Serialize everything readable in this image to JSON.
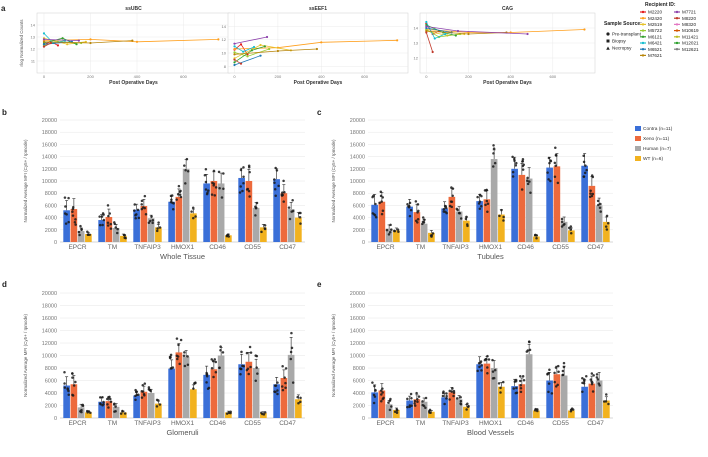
{
  "colors": {
    "Contra": "#3a6fd8",
    "Xeno": "#ed6a3c",
    "Human": "#a9a9a9",
    "WT": "#f2b21f",
    "pre_line": "#f39c2a",
    "grid": "#e6e6e6"
  },
  "panel_labels": [
    "a",
    "b",
    "c",
    "d",
    "e"
  ],
  "recipient_legend": {
    "title": "Recipient ID:",
    "items": [
      {
        "id": "M2220",
        "color": "#e41a1c"
      },
      {
        "id": "M2420",
        "color": "#ff9f1c"
      },
      {
        "id": "M2519",
        "color": "#e6c229"
      },
      {
        "id": "M5722",
        "color": "#9acd32"
      },
      {
        "id": "M6121",
        "color": "#33a02c"
      },
      {
        "id": "M6421",
        "color": "#17becf"
      },
      {
        "id": "M6521",
        "color": "#1f78b4"
      },
      {
        "id": "M7621",
        "color": "#b8860b"
      },
      {
        "id": "M7721",
        "color": "#8e44ad"
      },
      {
        "id": "M8220",
        "color": "#c0392b"
      },
      {
        "id": "M8320",
        "color": "#e377c2"
      },
      {
        "id": "M10619",
        "color": "#d35400"
      },
      {
        "id": "M11421",
        "color": "#bcbd22"
      },
      {
        "id": "M12021",
        "color": "#2ca02c"
      },
      {
        "id": "M12621",
        "color": "#7f7f7f"
      }
    ]
  },
  "sample_legend": {
    "title": "Sample Source:",
    "items": [
      "Pre-transplant",
      "Biopsy",
      "Necropsy"
    ]
  },
  "group_legend": [
    {
      "label": "Contra (n=11)",
      "color": "#3a6fd8"
    },
    {
      "label": "Xeno (n=11)",
      "color": "#ed6a3c"
    },
    {
      "label": "Human (n=7)",
      "color": "#a9a9a9"
    },
    {
      "label": "WT (n=6)",
      "color": "#f2b21f"
    }
  ],
  "chart_data": [
    {
      "type": "line",
      "panel": "a",
      "title": "ssUBC",
      "xlabel": "Post Operative Days",
      "ylabel": "rlog Normalized Counts",
      "xlim": [
        -30,
        800
      ],
      "ylim": [
        10,
        15
      ],
      "xticks": [
        0,
        200,
        400,
        600
      ],
      "yticks": [
        11,
        12,
        13,
        14
      ],
      "series": [
        {
          "name": "M2220",
          "x": [
            0,
            30,
            60
          ],
          "y": [
            12.4,
            12.6,
            12.3
          ]
        },
        {
          "name": "M2420",
          "x": [
            0,
            200,
            400,
            750
          ],
          "y": [
            12.7,
            12.8,
            12.6,
            12.8
          ]
        },
        {
          "name": "M2519",
          "x": [
            0,
            100,
            180
          ],
          "y": [
            12.9,
            12.4,
            12.6
          ]
        },
        {
          "name": "M5722",
          "x": [
            0,
            60,
            160
          ],
          "y": [
            12.3,
            12.6,
            12.5
          ]
        },
        {
          "name": "M6121",
          "x": [
            0,
            80,
            140
          ],
          "y": [
            12.5,
            12.9,
            12.4
          ]
        },
        {
          "name": "M6421",
          "x": [
            0,
            40,
            90
          ],
          "y": [
            13.3,
            12.5,
            12.7
          ]
        },
        {
          "name": "M6521",
          "x": [
            0,
            120
          ],
          "y": [
            12.4,
            12.6
          ]
        },
        {
          "name": "M7621",
          "x": [
            0,
            200,
            380
          ],
          "y": [
            12.6,
            12.5,
            12.7
          ]
        },
        {
          "name": "M7721",
          "x": [
            0,
            150
          ],
          "y": [
            12.8,
            12.7
          ]
        },
        {
          "name": "M8220",
          "x": [
            0,
            30
          ],
          "y": [
            12.2,
            12.5
          ]
        }
      ]
    },
    {
      "type": "line",
      "panel": "a",
      "title": "ssEEF1",
      "xlabel": "Post Operative Days",
      "ylabel": "",
      "xlim": [
        -30,
        800
      ],
      "ylim": [
        7,
        16
      ],
      "xticks": [
        0,
        200,
        400,
        600
      ],
      "yticks": [
        8,
        10,
        12,
        14
      ],
      "series": [
        {
          "name": "M2220",
          "x": [
            0,
            30,
            60
          ],
          "y": [
            10.5,
            11.3,
            9.8
          ]
        },
        {
          "name": "M2420",
          "x": [
            0,
            200,
            400,
            750
          ],
          "y": [
            10.6,
            10.8,
            11.6,
            11.9
          ]
        },
        {
          "name": "M2519",
          "x": [
            0,
            120,
            260
          ],
          "y": [
            9.2,
            11.2,
            10.4
          ]
        },
        {
          "name": "M5722",
          "x": [
            0,
            60,
            160
          ],
          "y": [
            10.1,
            9.5,
            10.6
          ]
        },
        {
          "name": "M6121",
          "x": [
            0,
            80,
            140
          ],
          "y": [
            8.6,
            10.4,
            11.0
          ]
        },
        {
          "name": "M6421",
          "x": [
            0,
            40,
            90
          ],
          "y": [
            11.0,
            10.2,
            10.9
          ]
        },
        {
          "name": "M6521",
          "x": [
            0,
            120
          ],
          "y": [
            8.2,
            9.6
          ]
        },
        {
          "name": "M7621",
          "x": [
            0,
            200,
            380
          ],
          "y": [
            9.8,
            10.3,
            10.6
          ]
        },
        {
          "name": "M7721",
          "x": [
            0,
            150
          ],
          "y": [
            11.4,
            12.4
          ]
        },
        {
          "name": "M8220",
          "x": [
            0,
            30
          ],
          "y": [
            9.0,
            8.4
          ]
        }
      ]
    },
    {
      "type": "line",
      "panel": "a",
      "title": "CAG",
      "xlabel": "Post Operative Days",
      "ylabel": "",
      "xlim": [
        -30,
        800
      ],
      "ylim": [
        11,
        15
      ],
      "xticks": [
        0,
        200,
        400,
        600
      ],
      "yticks": [
        12,
        13,
        14
      ],
      "series": [
        {
          "name": "M2220",
          "x": [
            0,
            30,
            60
          ],
          "y": [
            14.3,
            13.6,
            13.8
          ]
        },
        {
          "name": "M2420",
          "x": [
            0,
            200,
            400,
            750
          ],
          "y": [
            13.9,
            13.7,
            13.7,
            13.9
          ]
        },
        {
          "name": "M2519",
          "x": [
            0,
            100,
            180
          ],
          "y": [
            13.8,
            13.5,
            13.6
          ]
        },
        {
          "name": "M5722",
          "x": [
            0,
            60,
            160
          ],
          "y": [
            13.9,
            13.4,
            13.6
          ]
        },
        {
          "name": "M6121",
          "x": [
            0,
            80,
            140
          ],
          "y": [
            14.2,
            13.7,
            13.5
          ]
        },
        {
          "name": "M6421",
          "x": [
            0,
            40,
            90
          ],
          "y": [
            14.4,
            13.3,
            13.6
          ]
        },
        {
          "name": "M6521",
          "x": [
            0,
            120
          ],
          "y": [
            14.0,
            13.7
          ]
        },
        {
          "name": "M7621",
          "x": [
            0,
            200,
            380
          ],
          "y": [
            13.8,
            13.6,
            13.7
          ]
        },
        {
          "name": "M7721",
          "x": [
            0,
            150,
            480
          ],
          "y": [
            14.1,
            13.8,
            13.6
          ]
        },
        {
          "name": "M8220",
          "x": [
            0,
            30
          ],
          "y": [
            13.7,
            12.4
          ]
        }
      ]
    },
    {
      "type": "bar",
      "panel": "b",
      "xlabel": "Whole Tissue",
      "ylabel": "Normalized Average MFI (Cy5+ / Ipmode)",
      "ylim": [
        0,
        20000
      ],
      "yticks": [
        0,
        2000,
        4000,
        6000,
        8000,
        10000,
        12000,
        14000,
        16000,
        18000,
        20000
      ],
      "categories": [
        "EPCR",
        "TM",
        "TNFAIP3",
        "HMOX1",
        "CD46",
        "CD55",
        "CD47"
      ],
      "series": [
        {
          "name": "Contra",
          "values": [
            5200,
            3600,
            5300,
            6600,
            9600,
            10500,
            10300
          ],
          "err": [
            1600,
            900,
            900,
            900,
            1500,
            1600,
            1700
          ]
        },
        {
          "name": "Xeno",
          "values": [
            5400,
            4100,
            5900,
            7400,
            10000,
            10000,
            8000
          ],
          "err": [
            1700,
            1300,
            1100,
            1300,
            1500,
            1900,
            1400
          ]
        },
        {
          "name": "Human",
          "values": [
            1800,
            2300,
            3900,
            12000,
            9600,
            5600,
            5400
          ],
          "err": [
            500,
            600,
            500,
            1500,
            1700,
            900,
            1100
          ]
        },
        {
          "name": "WT",
          "values": [
            1300,
            1000,
            2400,
            4700,
            1100,
            2400,
            4000
          ],
          "err": [
            300,
            300,
            500,
            700,
            200,
            500,
            800
          ]
        }
      ]
    },
    {
      "type": "bar",
      "panel": "c",
      "xlabel": "Tubules",
      "ylabel": "Normalized Average MFI (Cy5+ / Ipmode)",
      "ylim": [
        0,
        20000
      ],
      "yticks": [
        0,
        2000,
        4000,
        6000,
        8000,
        10000,
        12000,
        14000,
        16000,
        18000,
        20000
      ],
      "categories": [
        "EPCR",
        "TM",
        "TNFAIP3",
        "HMOX1",
        "CD46",
        "CD55",
        "CD47"
      ],
      "series": [
        {
          "name": "Contra",
          "values": [
            6100,
            5800,
            5500,
            6700,
            12000,
            12200,
            12500
          ],
          "err": [
            1700,
            1200,
            1100,
            1100,
            1900,
            1700,
            2000
          ]
        },
        {
          "name": "Xeno",
          "values": [
            6600,
            4900,
            7400,
            7000,
            11000,
            12400,
            9200
          ],
          "err": [
            1500,
            1300,
            1400,
            1400,
            1900,
            2100,
            1500
          ]
        },
        {
          "name": "Human",
          "values": [
            2200,
            3000,
            5000,
            13600,
            10400,
            3300,
            6000
          ],
          "err": [
            600,
            700,
            800,
            1500,
            1800,
            800,
            1200
          ]
        },
        {
          "name": "WT",
          "values": [
            1900,
            1500,
            3500,
            4500,
            900,
            1900,
            3300
          ],
          "err": [
            400,
            400,
            600,
            800,
            200,
            400,
            800
          ]
        }
      ]
    },
    {
      "type": "bar",
      "panel": "d",
      "xlabel": "Glomeruli",
      "ylabel": "Normalized Average MFI (Cy5+ / Ipmode)",
      "ylim": [
        0,
        20000
      ],
      "yticks": [
        0,
        2000,
        4000,
        6000,
        8000,
        10000,
        12000,
        14000,
        16000,
        18000,
        20000
      ],
      "categories": [
        "EPCR",
        "TM",
        "TNFAIP3",
        "HMOX1",
        "CD46",
        "CD55",
        "CD47"
      ],
      "series": [
        {
          "name": "Contra",
          "values": [
            5200,
            2600,
            3600,
            7900,
            6900,
            8600,
            5400
          ],
          "err": [
            1400,
            700,
            700,
            1400,
            1400,
            1600,
            1100
          ]
        },
        {
          "name": "Xeno",
          "values": [
            5400,
            2700,
            4200,
            10500,
            7800,
            9000,
            6400
          ],
          "err": [
            1400,
            700,
            900,
            1400,
            1300,
            1500,
            1300
          ]
        },
        {
          "name": "Human",
          "values": [
            1700,
            1800,
            4000,
            9800,
            10000,
            8000,
            10100
          ],
          "err": [
            500,
            500,
            600,
            1000,
            1300,
            1400,
            2800
          ]
        },
        {
          "name": "WT",
          "values": [
            900,
            900,
            2300,
            4600,
            900,
            800,
            3000
          ],
          "err": [
            200,
            200,
            400,
            700,
            200,
            200,
            700
          ]
        }
      ]
    },
    {
      "type": "bar",
      "panel": "e",
      "xlabel": "Blood Vessels",
      "ylabel": "Normalized Average MFI (Cy5+ / Ipmode)",
      "ylim": [
        0,
        20000
      ],
      "yticks": [
        0,
        2000,
        4000,
        6000,
        8000,
        10000,
        12000,
        14000,
        16000,
        18000,
        20000
      ],
      "categories": [
        "EPCR",
        "TM",
        "TNFAIP3",
        "HMOX1",
        "CD46",
        "CD55",
        "CD47"
      ],
      "series": [
        {
          "name": "Contra",
          "values": [
            4100,
            2800,
            3300,
            8600,
            5100,
            6000,
            5000
          ],
          "err": [
            1200,
            700,
            700,
            1200,
            1100,
            1300,
            1100
          ]
        },
        {
          "name": "Xeno",
          "values": [
            4400,
            3000,
            4100,
            8700,
            5400,
            7000,
            5500
          ],
          "err": [
            1100,
            700,
            800,
            1100,
            1000,
            1300,
            1200
          ]
        },
        {
          "name": "Human",
          "values": [
            2200,
            2600,
            3000,
            8000,
            10200,
            6800,
            6000
          ],
          "err": [
            600,
            600,
            600,
            1200,
            1600,
            1500,
            1300
          ]
        },
        {
          "name": "WT",
          "values": [
            1300,
            1000,
            1800,
            5000,
            1200,
            1200,
            2800
          ],
          "err": [
            300,
            200,
            400,
            700,
            200,
            200,
            600
          ]
        }
      ]
    }
  ]
}
